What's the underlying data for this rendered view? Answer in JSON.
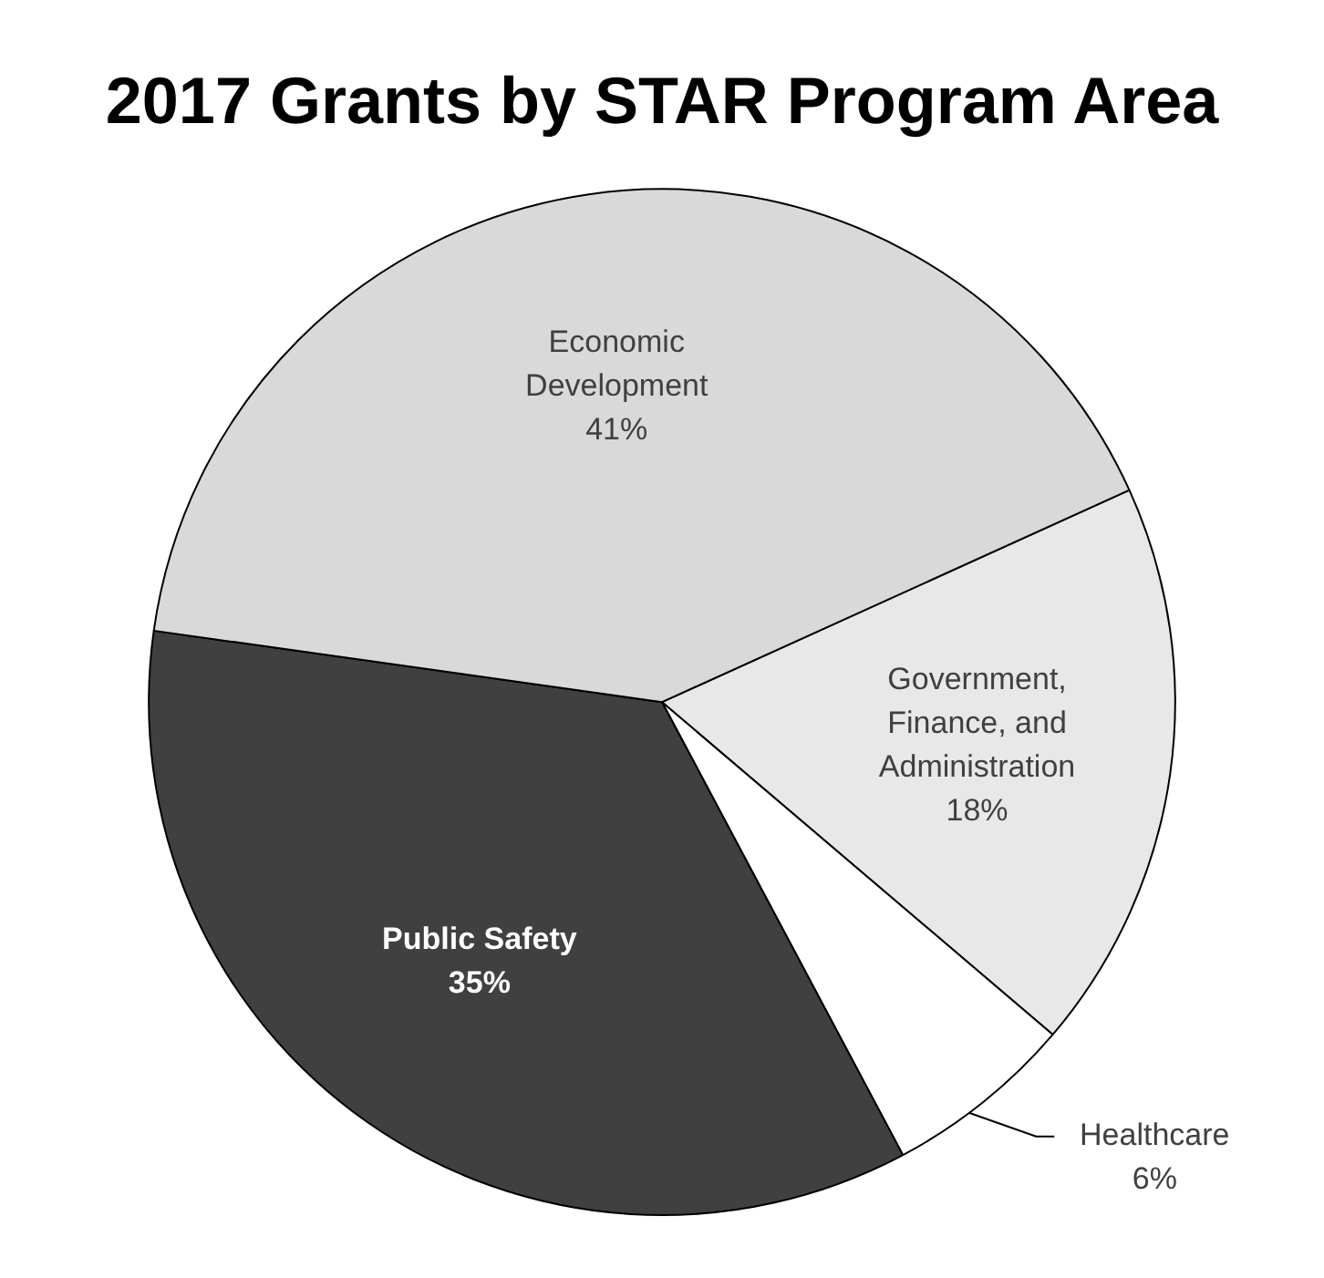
{
  "chart_data": {
    "type": "pie",
    "title": "2017 Grants by STAR Program Area",
    "categories": [
      "Government, Finance, and Administration",
      "Healthcare",
      "Public Safety",
      "Economic Development"
    ],
    "values": [
      18,
      6,
      35,
      41
    ],
    "colors": [
      "#e8e8e8",
      "#ffffff",
      "#404040",
      "#d9d9d9"
    ],
    "value_labels": [
      "18%",
      "6%",
      "35%",
      "41%"
    ],
    "legend": false
  }
}
